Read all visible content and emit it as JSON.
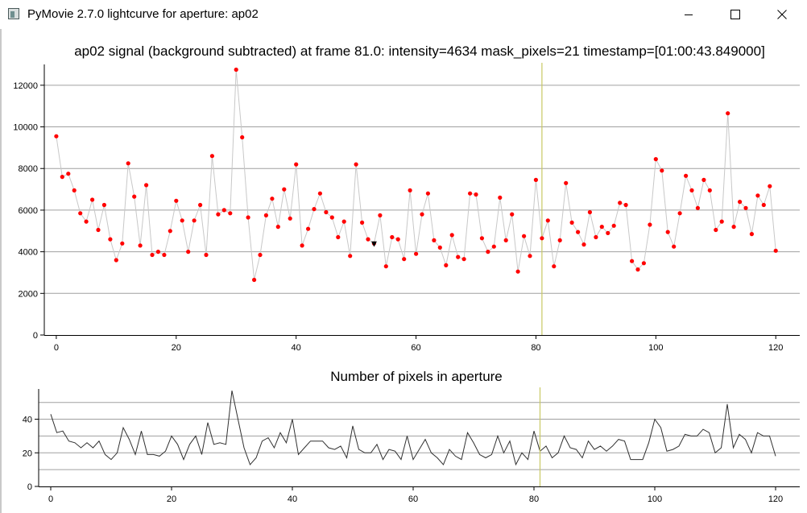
{
  "window": {
    "title": "PyMovie 2.7.0 lightcurve for aperture: ap02",
    "icon": "app-icon",
    "controls": [
      "minimize-icon",
      "maximize-icon",
      "close-icon"
    ]
  },
  "chart_data": [
    {
      "type": "scatter",
      "title": "ap02 signal (background subtracted) at frame 81.0: intensity=4634 mask_pixels=21 timestamp=[01:00:43.849000]",
      "xlabel": "",
      "ylabel": "",
      "xlim": [
        -2,
        124
      ],
      "ylim": [
        0,
        13000
      ],
      "xticks": [
        0,
        20,
        40,
        60,
        80,
        100,
        120
      ],
      "yticks": [
        0,
        2000,
        4000,
        6000,
        8000,
        10000,
        12000
      ],
      "grid": true,
      "cursor_x": 81,
      "marker_color": "#ff0000",
      "line_color": "#c8c8c8",
      "cursor_color": "#c8c864",
      "series": [
        {
          "x": [
            0,
            1,
            2,
            3,
            4,
            5,
            6,
            7,
            8,
            9,
            10,
            11,
            12,
            13,
            14,
            15,
            16,
            17,
            18,
            19,
            20,
            21,
            22,
            23,
            24,
            25,
            26,
            27,
            28,
            29,
            30,
            31,
            32,
            33,
            34,
            35,
            36,
            37,
            38,
            39,
            40,
            41,
            42,
            43,
            44,
            45,
            46,
            47,
            48,
            49,
            50,
            51,
            52,
            53,
            54,
            55,
            56,
            57,
            58,
            59,
            60,
            61,
            62,
            63,
            64,
            65,
            66,
            67,
            68,
            69,
            70,
            71,
            72,
            73,
            74,
            75,
            76,
            77,
            78,
            79,
            80,
            81,
            82,
            83,
            84,
            85,
            86,
            87,
            88,
            89,
            90,
            91,
            92,
            93,
            94,
            95,
            96,
            97,
            98,
            99,
            100,
            101,
            102,
            103,
            104,
            105,
            106,
            107,
            108,
            109,
            110,
            111,
            112,
            113,
            114,
            115,
            116,
            117,
            118,
            119,
            120
          ],
          "values": [
            9550,
            7600,
            7750,
            6950,
            5850,
            5450,
            6500,
            5050,
            6250,
            4600,
            3600,
            4400,
            8250,
            6650,
            4300,
            7200,
            3850,
            4000,
            3850,
            5000,
            6450,
            5500,
            4000,
            5500,
            6250,
            3850,
            8600,
            5800,
            6000,
            5850,
            12750,
            9500,
            5650,
            2650,
            3850,
            5750,
            6550,
            5200,
            7000,
            5600,
            8200,
            4300,
            5100,
            6050,
            6800,
            5900,
            5650,
            4700,
            5450,
            3800,
            8200,
            5400,
            4600,
            4400,
            5750,
            3300,
            4700,
            4600,
            3650,
            6950,
            3900,
            5800,
            6800,
            4550,
            4200,
            3350,
            4800,
            3750,
            3650,
            6800,
            6750,
            4650,
            4000,
            4250,
            6600,
            4550,
            5800,
            3050,
            4750,
            3800,
            7450,
            4650,
            5500,
            3300,
            4550,
            7300,
            5400,
            4950,
            4350,
            5900,
            4700,
            5200,
            4900,
            5250,
            6350,
            6250,
            3550,
            3150,
            3450,
            5300,
            8450,
            7900,
            4950,
            4250,
            5850,
            7650,
            6950,
            6100,
            7450,
            6950,
            5050,
            5450,
            10650,
            5200,
            6400,
            6100,
            4850,
            6700,
            6250,
            7150,
            4050
          ]
        }
      ],
      "annotations": [
        {
          "text": "▼",
          "x": 53,
          "y": 4400
        }
      ]
    },
    {
      "type": "line",
      "title": "Number of pixels in aperture",
      "xlabel": "",
      "ylabel": "",
      "xlim": [
        -2,
        124
      ],
      "ylim": [
        0,
        58
      ],
      "xticks": [
        0,
        20,
        40,
        60,
        80,
        100,
        120
      ],
      "yticks": [
        0,
        20,
        40
      ],
      "gridlines_y": [
        10,
        20,
        30,
        40,
        50
      ],
      "grid": true,
      "cursor_x": 81,
      "line_color": "#303030",
      "cursor_color": "#c8c864",
      "series": [
        {
          "x": [
            0,
            1,
            2,
            3,
            4,
            5,
            6,
            7,
            8,
            9,
            10,
            11,
            12,
            13,
            14,
            15,
            16,
            17,
            18,
            19,
            20,
            21,
            22,
            23,
            24,
            25,
            26,
            27,
            28,
            29,
            30,
            31,
            32,
            33,
            34,
            35,
            36,
            37,
            38,
            39,
            40,
            41,
            42,
            43,
            44,
            45,
            46,
            47,
            48,
            49,
            50,
            51,
            52,
            53,
            54,
            55,
            56,
            57,
            58,
            59,
            60,
            61,
            62,
            63,
            64,
            65,
            66,
            67,
            68,
            69,
            70,
            71,
            72,
            73,
            74,
            75,
            76,
            77,
            78,
            79,
            80,
            81,
            82,
            83,
            84,
            85,
            86,
            87,
            88,
            89,
            90,
            91,
            92,
            93,
            94,
            95,
            96,
            97,
            98,
            99,
            100,
            101,
            102,
            103,
            104,
            105,
            106,
            107,
            108,
            109,
            110,
            111,
            112,
            113,
            114,
            115,
            116,
            117,
            118,
            119,
            120
          ],
          "values": [
            43,
            32,
            33,
            27,
            26,
            23,
            26,
            23,
            27,
            19,
            16,
            20,
            35,
            28,
            19,
            33,
            19,
            19,
            18,
            21,
            30,
            25,
            16,
            25,
            30,
            19,
            38,
            25,
            26,
            25,
            57,
            40,
            23,
            13,
            17,
            27,
            29,
            23,
            32,
            26,
            40,
            19,
            23,
            27,
            27,
            27,
            23,
            22,
            24,
            17,
            36,
            22,
            20,
            20,
            25,
            16,
            22,
            21,
            16,
            30,
            16,
            22,
            28,
            20,
            17,
            13,
            22,
            18,
            16,
            32,
            26,
            19,
            17,
            19,
            30,
            20,
            27,
            13,
            20,
            16,
            33,
            21,
            24,
            17,
            20,
            30,
            23,
            22,
            17,
            27,
            22,
            24,
            21,
            24,
            28,
            27,
            16,
            16,
            16,
            26,
            40,
            35,
            21,
            22,
            24,
            31,
            30,
            30,
            34,
            32,
            20,
            23,
            49,
            23,
            31,
            28,
            20,
            32,
            30,
            30,
            18
          ]
        }
      ]
    }
  ]
}
